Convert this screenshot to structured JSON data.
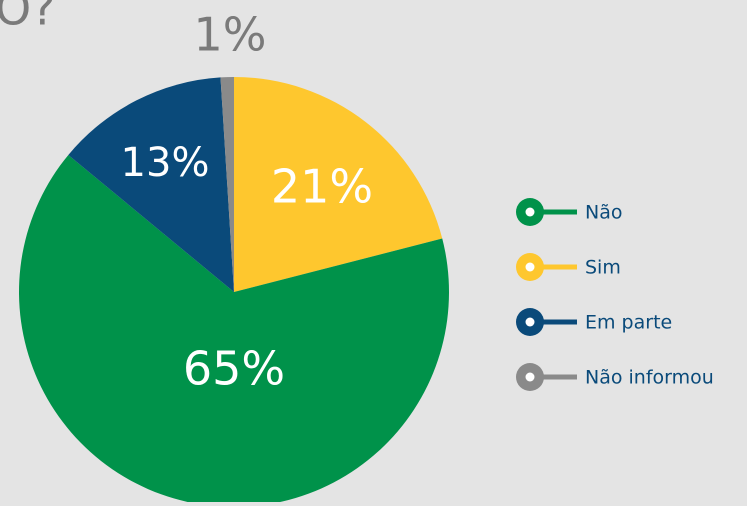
{
  "chart_data": {
    "type": "pie",
    "title": "O?",
    "categories": [
      "Não",
      "Sim",
      "Em parte",
      "Não informou"
    ],
    "values": [
      65,
      21,
      13,
      1
    ],
    "value_labels": [
      "65%",
      "21%",
      "13%",
      "1%"
    ],
    "colors": [
      "#00924a",
      "#fec72e",
      "#0a4a7a",
      "#8a8a8a"
    ],
    "legend": "right"
  }
}
